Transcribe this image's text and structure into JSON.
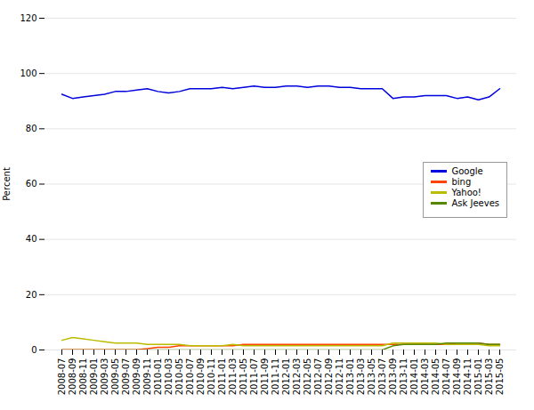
{
  "chart_data": {
    "type": "line",
    "ylabel": "Percent",
    "x": [
      "2008-07",
      "2008-09",
      "2008-11",
      "2009-01",
      "2009-03",
      "2009-05",
      "2009-07",
      "2009-09",
      "2009-11",
      "2010-01",
      "2010-03",
      "2010-05",
      "2010-07",
      "2010-09",
      "2010-11",
      "2011-01",
      "2011-03",
      "2011-05",
      "2011-07",
      "2011-09",
      "2011-11",
      "2012-01",
      "2012-03",
      "2012-05",
      "2012-07",
      "2012-09",
      "2012-11",
      "2013-01",
      "2013-03",
      "2013-05",
      "2013-07",
      "2013-09",
      "2013-11",
      "2014-01",
      "2014-03",
      "2014-05",
      "2014-07",
      "2014-09",
      "2014-11",
      "2015-01",
      "2015-03",
      "2015-05"
    ],
    "series": [
      {
        "name": "Google",
        "color": "#0000dd",
        "values": [
          92.5,
          91.0,
          91.5,
          92.0,
          92.5,
          93.5,
          93.5,
          94.0,
          94.5,
          93.5,
          93.0,
          93.5,
          94.5,
          94.5,
          94.5,
          95.0,
          94.5,
          95.0,
          95.5,
          95.0,
          95.0,
          95.5,
          95.5,
          95.0,
          95.5,
          95.5,
          95.0,
          95.0,
          94.5,
          94.5,
          94.5,
          91.0,
          91.5,
          91.5,
          92.0,
          92.0,
          92.0,
          91.0,
          91.5,
          90.5,
          91.5,
          94.5
        ]
      },
      {
        "name": "bing",
        "color": "#ff4400",
        "values": [
          0.1,
          0.1,
          0.1,
          0.1,
          0.1,
          0.1,
          0.1,
          0.1,
          0.5,
          1.0,
          1.0,
          1.5,
          1.5,
          1.5,
          1.5,
          1.5,
          1.5,
          2.0,
          2.0,
          2.0,
          2.0,
          2.0,
          2.0,
          2.0,
          2.0,
          2.0,
          2.0,
          2.0,
          2.0,
          2.0,
          2.0,
          2.0,
          2.0,
          2.0,
          2.0,
          2.0,
          2.0,
          2.5,
          2.5,
          2.5,
          2.0,
          2.0
        ]
      },
      {
        "name": "Yahoo!",
        "color": "#bbbb00",
        "values": [
          3.5,
          4.5,
          4.0,
          3.5,
          3.0,
          2.5,
          2.5,
          2.5,
          2.0,
          2.0,
          2.0,
          2.0,
          1.5,
          1.5,
          1.5,
          1.5,
          2.0,
          1.5,
          1.5,
          1.5,
          1.5,
          1.5,
          1.5,
          1.5,
          1.5,
          1.5,
          1.5,
          1.5,
          1.5,
          1.5,
          1.5,
          2.5,
          2.5,
          2.5,
          2.5,
          2.5,
          2.0,
          2.0,
          2.0,
          2.0,
          1.5,
          1.5
        ]
      },
      {
        "name": "Ask Jeeves",
        "color": "#558800",
        "values": [
          0.0,
          0.0,
          0.0,
          0.0,
          0.0,
          0.0,
          0.0,
          0.0,
          0.0,
          0.0,
          0.0,
          0.0,
          0.0,
          0.0,
          0.0,
          0.0,
          0.0,
          0.0,
          0.0,
          0.0,
          0.0,
          0.0,
          0.0,
          0.0,
          0.0,
          0.0,
          0.0,
          0.0,
          0.0,
          0.0,
          0.0,
          1.5,
          2.0,
          2.0,
          2.0,
          2.0,
          2.5,
          2.5,
          2.5,
          2.5,
          2.0,
          2.0
        ]
      }
    ],
    "ylim": [
      0,
      120
    ],
    "yticks": [
      0,
      20,
      40,
      60,
      80,
      100,
      120
    ],
    "grid": true,
    "legend": "center right"
  }
}
